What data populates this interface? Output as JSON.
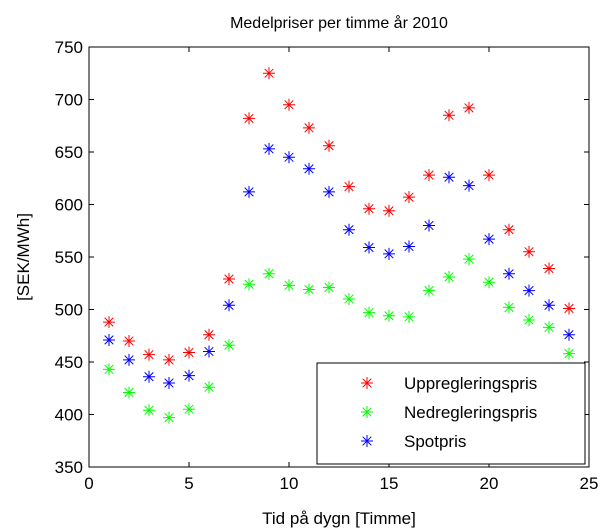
{
  "chart_data": {
    "type": "scatter",
    "title": "Medelpriser per timme år 2010",
    "xlabel": "Tid på dygn [Timme]",
    "ylabel": "[SEK/MWh]",
    "xlim": [
      0,
      25
    ],
    "ylim": [
      350,
      750
    ],
    "xticks": [
      0,
      5,
      10,
      15,
      20,
      25
    ],
    "yticks": [
      350,
      400,
      450,
      500,
      550,
      600,
      650,
      700,
      750
    ],
    "grid": false,
    "legend_position": "bottom-right",
    "marker": "asterisk",
    "x": [
      1,
      2,
      3,
      4,
      5,
      6,
      7,
      8,
      9,
      10,
      11,
      12,
      13,
      14,
      15,
      16,
      17,
      18,
      19,
      20,
      21,
      22,
      23,
      24
    ],
    "series": [
      {
        "name": "Uppregleringspris",
        "color": "#ff0000",
        "values": [
          488,
          470,
          457,
          452,
          459,
          476,
          529,
          682,
          725,
          695,
          673,
          656,
          617,
          596,
          594,
          607,
          628,
          685,
          692,
          628,
          576,
          555,
          539,
          501
        ]
      },
      {
        "name": "Nedregleringspris",
        "color": "#00ff00",
        "values": [
          443,
          421,
          404,
          397,
          405,
          426,
          466,
          524,
          534,
          523,
          519,
          521,
          510,
          497,
          494,
          493,
          518,
          531,
          548,
          526,
          502,
          490,
          483,
          458
        ]
      },
      {
        "name": "Spotpris",
        "color": "#0000ff",
        "values": [
          471,
          452,
          436,
          430,
          437,
          460,
          504,
          612,
          653,
          645,
          634,
          612,
          576,
          559,
          553,
          560,
          580,
          626,
          618,
          567,
          534,
          518,
          504,
          476
        ]
      }
    ]
  }
}
